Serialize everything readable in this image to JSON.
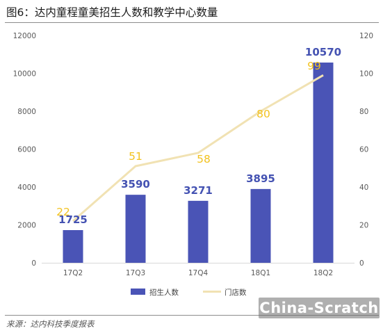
{
  "title": "图6：达内童程童美招生人数和教学中心数量",
  "source": "来源：达内科技季度报表",
  "watermark": "China-Scratch",
  "colors": {
    "bar": "#4a54b6",
    "line": "#f1e2b3",
    "bar_label": "#4452b2",
    "line_label": "#f2c21f"
  },
  "chart_data": {
    "type": "bar",
    "categories": [
      "17Q2",
      "17Q3",
      "17Q4",
      "18Q1",
      "18Q2"
    ],
    "series": [
      {
        "name": "招生人数",
        "type": "bar",
        "axis": "left",
        "values": [
          1725,
          3590,
          3271,
          3895,
          10570
        ],
        "labels": [
          "1725",
          "3590",
          "3271",
          "3895",
          "10570"
        ]
      },
      {
        "name": "门店数",
        "type": "line",
        "axis": "right",
        "values": [
          22,
          51,
          58,
          80,
          99
        ],
        "labels": [
          "22",
          "51",
          "58",
          "80",
          "99"
        ]
      }
    ],
    "y_left": {
      "range": [
        0,
        12000
      ],
      "ticks": [
        "0",
        "2000",
        "4000",
        "6000",
        "8000",
        "10000",
        "12000"
      ]
    },
    "y_right": {
      "range": [
        0,
        120
      ],
      "ticks": [
        "0",
        "20",
        "40",
        "60",
        "80",
        "100",
        "120"
      ]
    },
    "grid": false,
    "legend_position": "bottom"
  }
}
